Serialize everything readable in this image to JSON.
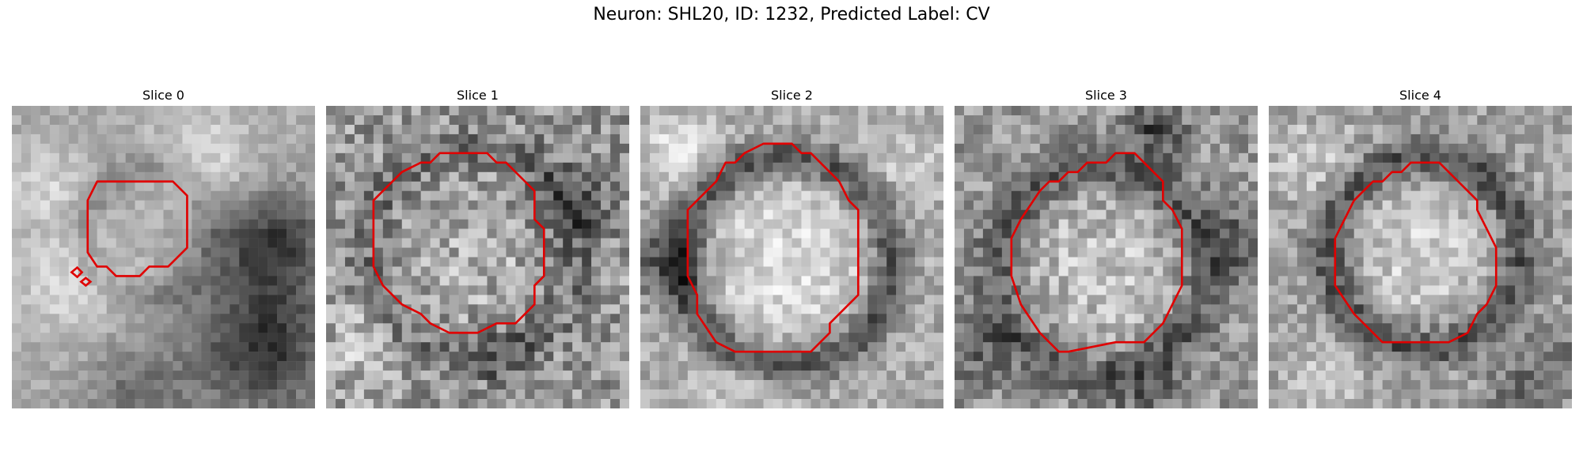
{
  "figure": {
    "title": "Neuron: SHL20, ID: 1232, Predicted Label: CV"
  },
  "slices": [
    {
      "label": "Slice 0"
    },
    {
      "label": "Slice 1"
    },
    {
      "label": "Slice 2"
    },
    {
      "label": "Slice 3"
    },
    {
      "label": "Slice 4"
    }
  ],
  "colors": {
    "contour": "#e00000",
    "background": "#ffffff"
  }
}
